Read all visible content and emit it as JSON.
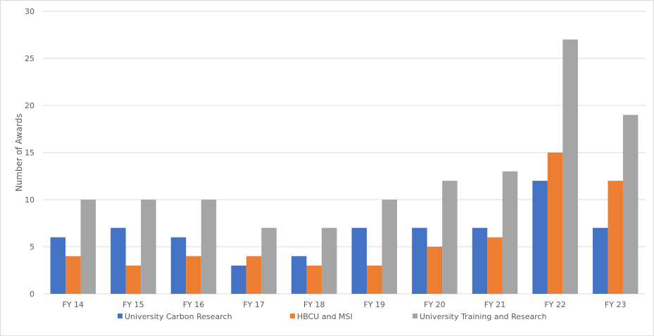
{
  "chart_data": {
    "type": "bar",
    "title": "",
    "xlabel": "",
    "ylabel": "Number of Awards",
    "ylim": [
      0,
      30
    ],
    "yticks": [
      0,
      5,
      10,
      15,
      20,
      25,
      30
    ],
    "grid": true,
    "legend_position": "bottom",
    "categories": [
      "FY 14",
      "FY 15",
      "FY 16",
      "FY 17",
      "FY 18",
      "FY 19",
      "FY 20",
      "FY 21",
      "FY 22",
      "FY 23"
    ],
    "series": [
      {
        "name": "University Carbon Research",
        "color": "#4472C4",
        "values": [
          6,
          7,
          6,
          3,
          4,
          7,
          7,
          7,
          12,
          7
        ]
      },
      {
        "name": "HBCU and MSI",
        "color": "#ED7D31",
        "values": [
          4,
          3,
          4,
          4,
          3,
          3,
          5,
          6,
          15,
          12
        ]
      },
      {
        "name": "University Training and Research",
        "color": "#A5A5A5",
        "values": [
          10,
          10,
          10,
          7,
          7,
          10,
          12,
          13,
          27,
          19
        ]
      }
    ]
  }
}
